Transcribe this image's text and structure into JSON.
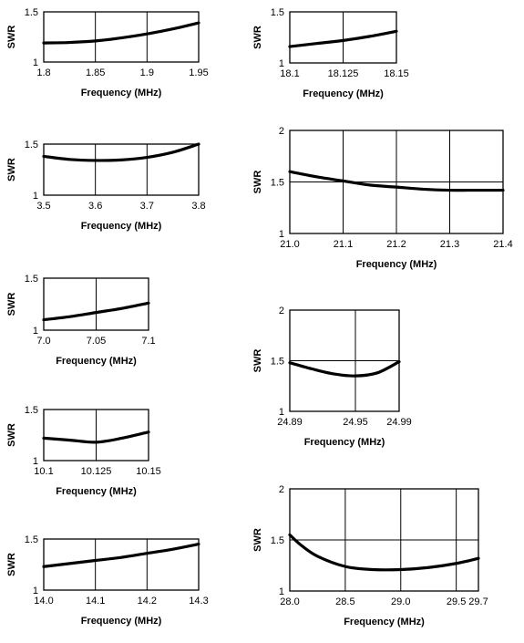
{
  "chart_data": [
    {
      "type": "line",
      "xlabel": "Frequency (MHz)",
      "ylabel": "SWR",
      "xlim": [
        1.8,
        1.95
      ],
      "ylim": [
        1,
        1.5
      ],
      "x_ticks": [
        "1.8",
        "1.85",
        "1.9",
        "1.95"
      ],
      "y_ticks": [
        "1",
        "1.5"
      ],
      "grid": "vertical",
      "x": [
        1.8,
        1.825,
        1.85,
        1.875,
        1.9,
        1.925,
        1.95
      ],
      "y": [
        1.19,
        1.195,
        1.21,
        1.24,
        1.28,
        1.33,
        1.39
      ]
    },
    {
      "type": "line",
      "xlabel": "Frequency (MHz)",
      "ylabel": "SWR",
      "xlim": [
        3.5,
        3.8
      ],
      "ylim": [
        1,
        1.5
      ],
      "x_ticks": [
        "3.5",
        "3.6",
        "3.7",
        "3.8"
      ],
      "y_ticks": [
        "1",
        "1.5"
      ],
      "grid": "vertical",
      "x": [
        3.5,
        3.55,
        3.6,
        3.65,
        3.7,
        3.75,
        3.8
      ],
      "y": [
        1.38,
        1.35,
        1.34,
        1.345,
        1.37,
        1.42,
        1.5
      ]
    },
    {
      "type": "line",
      "xlabel": "Frequency (MHz)",
      "ylabel": "SWR",
      "xlim": [
        7.0,
        7.1
      ],
      "ylim": [
        1,
        1.5
      ],
      "x_ticks": [
        "7.0",
        "7.05",
        "7.1"
      ],
      "y_ticks": [
        "1",
        "1.5"
      ],
      "grid": "vertical",
      "x": [
        7.0,
        7.025,
        7.05,
        7.075,
        7.1
      ],
      "y": [
        1.1,
        1.13,
        1.17,
        1.21,
        1.26
      ]
    },
    {
      "type": "line",
      "xlabel": "Frequency (MHz)",
      "ylabel": "SWR",
      "xlim": [
        10.1,
        10.15
      ],
      "ylim": [
        1,
        1.5
      ],
      "x_ticks": [
        "10.1",
        "10.125",
        "10.15"
      ],
      "y_ticks": [
        "1",
        "1.5"
      ],
      "grid": "vertical",
      "x": [
        10.1,
        10.1125,
        10.125,
        10.1375,
        10.15
      ],
      "y": [
        1.22,
        1.2,
        1.18,
        1.22,
        1.28
      ]
    },
    {
      "type": "line",
      "xlabel": "Frequency (MHz)",
      "ylabel": "SWR",
      "xlim": [
        14.0,
        14.3
      ],
      "ylim": [
        1,
        1.5
      ],
      "x_ticks": [
        "14.0",
        "14.1",
        "14.2",
        "14.3"
      ],
      "y_ticks": [
        "1",
        "1.5"
      ],
      "grid": "vertical",
      "x": [
        14.0,
        14.05,
        14.1,
        14.15,
        14.2,
        14.25,
        14.3
      ],
      "y": [
        1.23,
        1.26,
        1.29,
        1.32,
        1.36,
        1.4,
        1.45
      ]
    },
    {
      "type": "line",
      "xlabel": "Frequency (MHz)",
      "ylabel": "SWR",
      "xlim": [
        18.1,
        18.15
      ],
      "ylim": [
        1,
        1.5
      ],
      "x_ticks": [
        "18.1",
        "18.125",
        "18.15"
      ],
      "y_ticks": [
        "1",
        "1.5"
      ],
      "grid": "vertical",
      "x": [
        18.1,
        18.1125,
        18.125,
        18.1375,
        18.15
      ],
      "y": [
        1.16,
        1.19,
        1.22,
        1.26,
        1.31
      ]
    },
    {
      "type": "line",
      "xlabel": "Frequency (MHz)",
      "ylabel": "SWR",
      "xlim": [
        21.0,
        21.4
      ],
      "ylim": [
        1,
        2
      ],
      "x_ticks": [
        "21.0",
        "21.1",
        "21.2",
        "21.3",
        "21.4"
      ],
      "y_ticks": [
        "1",
        "1.5",
        "2"
      ],
      "grid": "vertical+1.5",
      "x": [
        21.0,
        21.05,
        21.1,
        21.15,
        21.2,
        21.25,
        21.3,
        21.35,
        21.4
      ],
      "y": [
        1.6,
        1.55,
        1.51,
        1.47,
        1.45,
        1.43,
        1.42,
        1.42,
        1.42
      ]
    },
    {
      "type": "line",
      "xlabel": "Frequency (MHz)",
      "ylabel": "SWR",
      "xlim": [
        24.89,
        24.99
      ],
      "ylim": [
        1,
        2
      ],
      "x_ticks": [
        "24.89",
        "24.95",
        "24.99"
      ],
      "y_ticks": [
        "1",
        "1.5",
        "2"
      ],
      "grid": "vertical+1.5",
      "x": [
        24.89,
        24.91,
        24.93,
        24.95,
        24.97,
        24.99
      ],
      "y": [
        1.48,
        1.42,
        1.37,
        1.35,
        1.38,
        1.49
      ]
    },
    {
      "type": "line",
      "xlabel": "Frequency (MHz)",
      "ylabel": "SWR",
      "xlim": [
        28.0,
        29.7
      ],
      "ylim": [
        1,
        2
      ],
      "x_ticks": [
        "28.0",
        "28.5",
        "29.0",
        "29.5",
        "29.7"
      ],
      "y_ticks": [
        "1",
        "1.5",
        "2"
      ],
      "x_tick_values": [
        28.0,
        28.5,
        29.0,
        29.5,
        29.7
      ],
      "grid": "vertical+1.5",
      "x": [
        28.0,
        28.1,
        28.25,
        28.5,
        28.75,
        29.0,
        29.25,
        29.5,
        29.7
      ],
      "y": [
        1.55,
        1.45,
        1.34,
        1.24,
        1.21,
        1.21,
        1.23,
        1.27,
        1.32
      ]
    }
  ]
}
